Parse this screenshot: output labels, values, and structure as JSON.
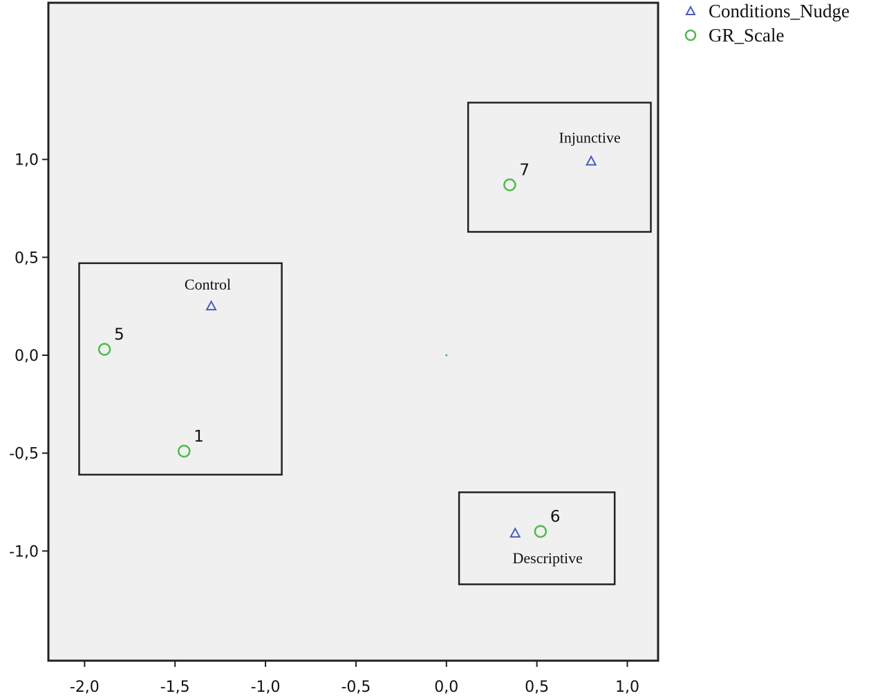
{
  "chart_data": {
    "type": "scatter",
    "title": "",
    "xlabel": "",
    "ylabel": "",
    "xlim": [
      -2.2,
      1.17
    ],
    "ylim": [
      -1.56,
      1.8
    ],
    "x_ticks": [
      {
        "value": -2.0,
        "label": "-2,0"
      },
      {
        "value": -1.5,
        "label": "-1,5"
      },
      {
        "value": -1.0,
        "label": "-1,0"
      },
      {
        "value": -0.5,
        "label": "-0,5"
      },
      {
        "value": 0.0,
        "label": "0,0"
      },
      {
        "value": 0.5,
        "label": "0,5"
      },
      {
        "value": 1.0,
        "label": "1,0"
      }
    ],
    "y_ticks": [
      {
        "value": 1.0,
        "label": "1,0"
      },
      {
        "value": 0.5,
        "label": "0,5"
      },
      {
        "value": 0.0,
        "label": "0,0"
      },
      {
        "value": -0.5,
        "label": "-0,5"
      },
      {
        "value": -1.0,
        "label": "-1,0"
      }
    ],
    "grid": false,
    "background_color": "#f0f0f0",
    "legend_position": "top-right, outside plot",
    "series": [
      {
        "name": "Conditions_Nudge",
        "marker": "triangle",
        "color": "#4a5bbf",
        "points": [
          {
            "x": -1.3,
            "y": 0.25,
            "label": "Control"
          },
          {
            "x": 0.8,
            "y": 0.99,
            "label": "Injunctive"
          },
          {
            "x": 0.38,
            "y": -0.91,
            "label": "Descriptive"
          }
        ]
      },
      {
        "name": "GR_Scale",
        "marker": "circle",
        "color": "#4cbb4c",
        "points": [
          {
            "x": -1.89,
            "y": 0.03,
            "label": "5"
          },
          {
            "x": -1.45,
            "y": -0.49,
            "label": "1"
          },
          {
            "x": 0.35,
            "y": 0.87,
            "label": "7"
          },
          {
            "x": 0.52,
            "y": -0.9,
            "label": "6"
          }
        ]
      }
    ],
    "annotations": [
      {
        "type": "box",
        "group": "Control",
        "x_range": [
          -2.03,
          -0.91
        ],
        "y_range": [
          -0.61,
          0.47
        ]
      },
      {
        "type": "box",
        "group": "Injunctive",
        "x_range": [
          0.12,
          1.13
        ],
        "y_range": [
          0.63,
          1.29
        ]
      },
      {
        "type": "box",
        "group": "Descriptive",
        "x_range": [
          0.07,
          0.93
        ],
        "y_range": [
          -1.17,
          -0.7
        ]
      }
    ]
  }
}
